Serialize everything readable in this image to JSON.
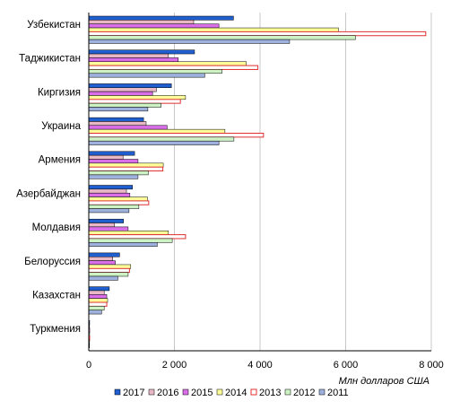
{
  "chart_data": {
    "type": "bar",
    "orientation": "horizontal",
    "grouped": true,
    "categories": [
      "Узбекистан",
      "Таджикистан",
      "Киргизия",
      "Украина",
      "Армения",
      "Азербайджан",
      "Молдавия",
      "Белоруссия",
      "Казахстан",
      "Туркмения"
    ],
    "xunit": "Млн долларов США",
    "xlim": [
      0,
      8000
    ],
    "xticks": [
      0,
      2000,
      4000,
      6000,
      8000
    ],
    "xtick_labels": [
      "0",
      "2 000",
      "4 000",
      "6 000",
      "8 000"
    ],
    "grid": true,
    "legend_position": "bottom",
    "series": [
      {
        "name": "2017",
        "color": "#1f5fcf",
        "values": [
          3380,
          2470,
          1930,
          1280,
          1070,
          1020,
          810,
          720,
          480,
          20
        ]
      },
      {
        "name": "2016",
        "color": "#e8b8c6",
        "values": [
          2450,
          1860,
          1580,
          1340,
          800,
          880,
          600,
          560,
          360,
          18
        ]
      },
      {
        "name": "2015",
        "color": "#d96ee8",
        "values": [
          3040,
          2090,
          1490,
          1830,
          1150,
          960,
          920,
          620,
          420,
          22
        ]
      },
      {
        "name": "2014",
        "color": "#ffff99",
        "values": [
          5830,
          3680,
          2260,
          3180,
          1740,
          1370,
          1860,
          980,
          440,
          20
        ]
      },
      {
        "name": "2013",
        "color": "#ffffff",
        "stroke": "#e03030",
        "values": [
          7870,
          3950,
          2140,
          4080,
          1730,
          1400,
          2260,
          950,
          420,
          20
        ]
      },
      {
        "name": "2012",
        "color": "#cdf2c4",
        "values": [
          6230,
          3110,
          1690,
          3390,
          1390,
          1170,
          1950,
          920,
          360,
          18
        ]
      },
      {
        "name": "2011",
        "color": "#9fb2dd",
        "values": [
          4690,
          2710,
          1380,
          3040,
          1150,
          940,
          1600,
          680,
          300,
          16
        ]
      }
    ]
  }
}
